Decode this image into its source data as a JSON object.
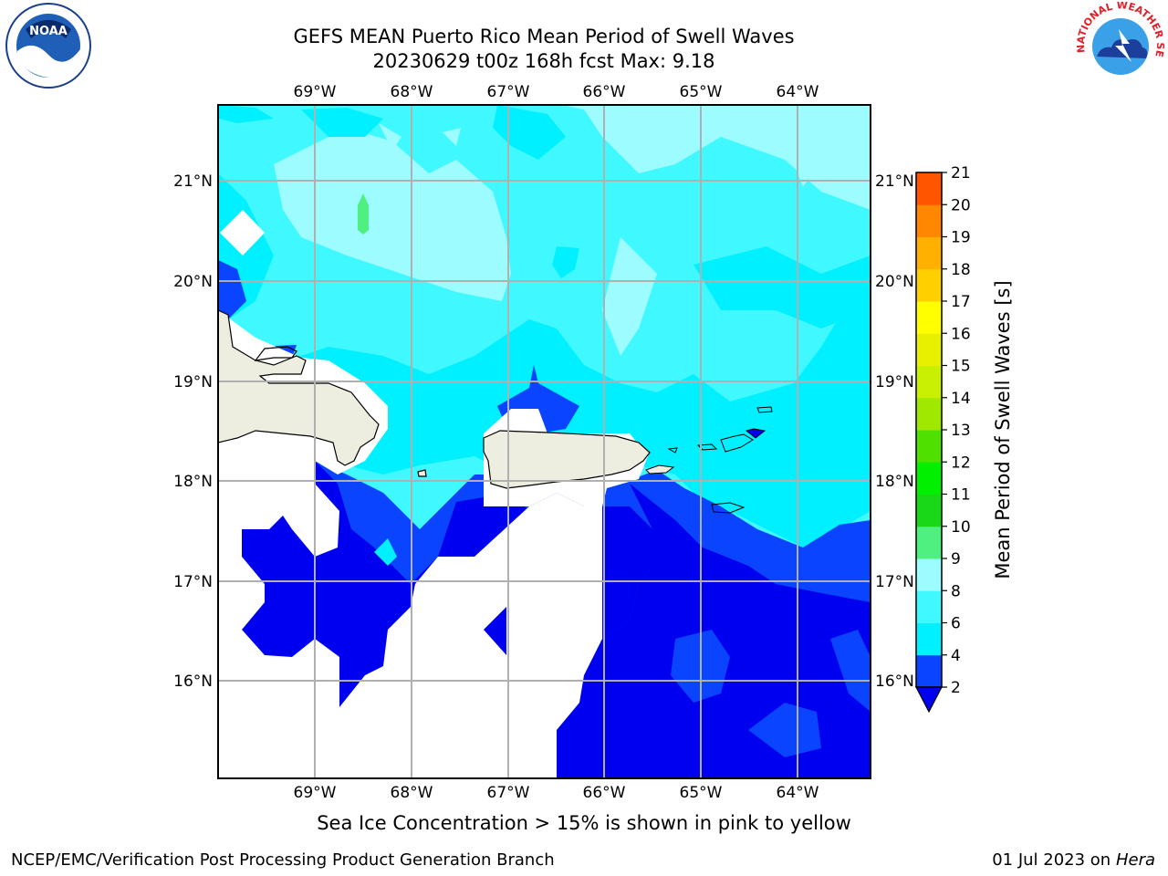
{
  "title_line1": "GEFS MEAN Puerto Rico Mean Period of Swell Waves",
  "title_line2": "20230629 t00z 168h fcst   Max: 9.18",
  "logos": {
    "left": "noaa-logo",
    "left_text": "NOAA",
    "right": "national-weather-service-logo",
    "right_text": "NATIONAL WEATHER SERVICE"
  },
  "map": {
    "lon_labels": [
      "69°W",
      "68°W",
      "67°W",
      "66°W",
      "65°W",
      "64°W"
    ],
    "lat_labels": [
      "21°N",
      "20°N",
      "19°N",
      "18°N",
      "17°N",
      "16°N"
    ],
    "land_color": "#eeeee0",
    "grid_color": "#b0b0b0"
  },
  "colorbar": {
    "label": "Mean Period of Swell Waves [s]",
    "levels": [
      "2",
      "4",
      "6",
      "8",
      "9",
      "10",
      "11",
      "12",
      "13",
      "14",
      "15",
      "16",
      "17",
      "18",
      "19",
      "20",
      "21"
    ],
    "colors": [
      "#0a44ff",
      "#00f0ff",
      "#40f8ff",
      "#9cfcff",
      "#50f080",
      "#18d818",
      "#00f000",
      "#50e000",
      "#a0e800",
      "#c8f000",
      "#e8f000",
      "#ffff00",
      "#ffd000",
      "#ffb000",
      "#ff8800",
      "#ff5500",
      "#ff2000",
      "#ff0000"
    ],
    "under_color": "#0000f0"
  },
  "note": "Sea Ice Concentration > 15% is shown in pink to yellow",
  "footer_left": "NCEP/EMC/Verification Post Processing Product Generation Branch",
  "footer_date": "01 Jul 2023 on ",
  "footer_host": "Hera"
}
